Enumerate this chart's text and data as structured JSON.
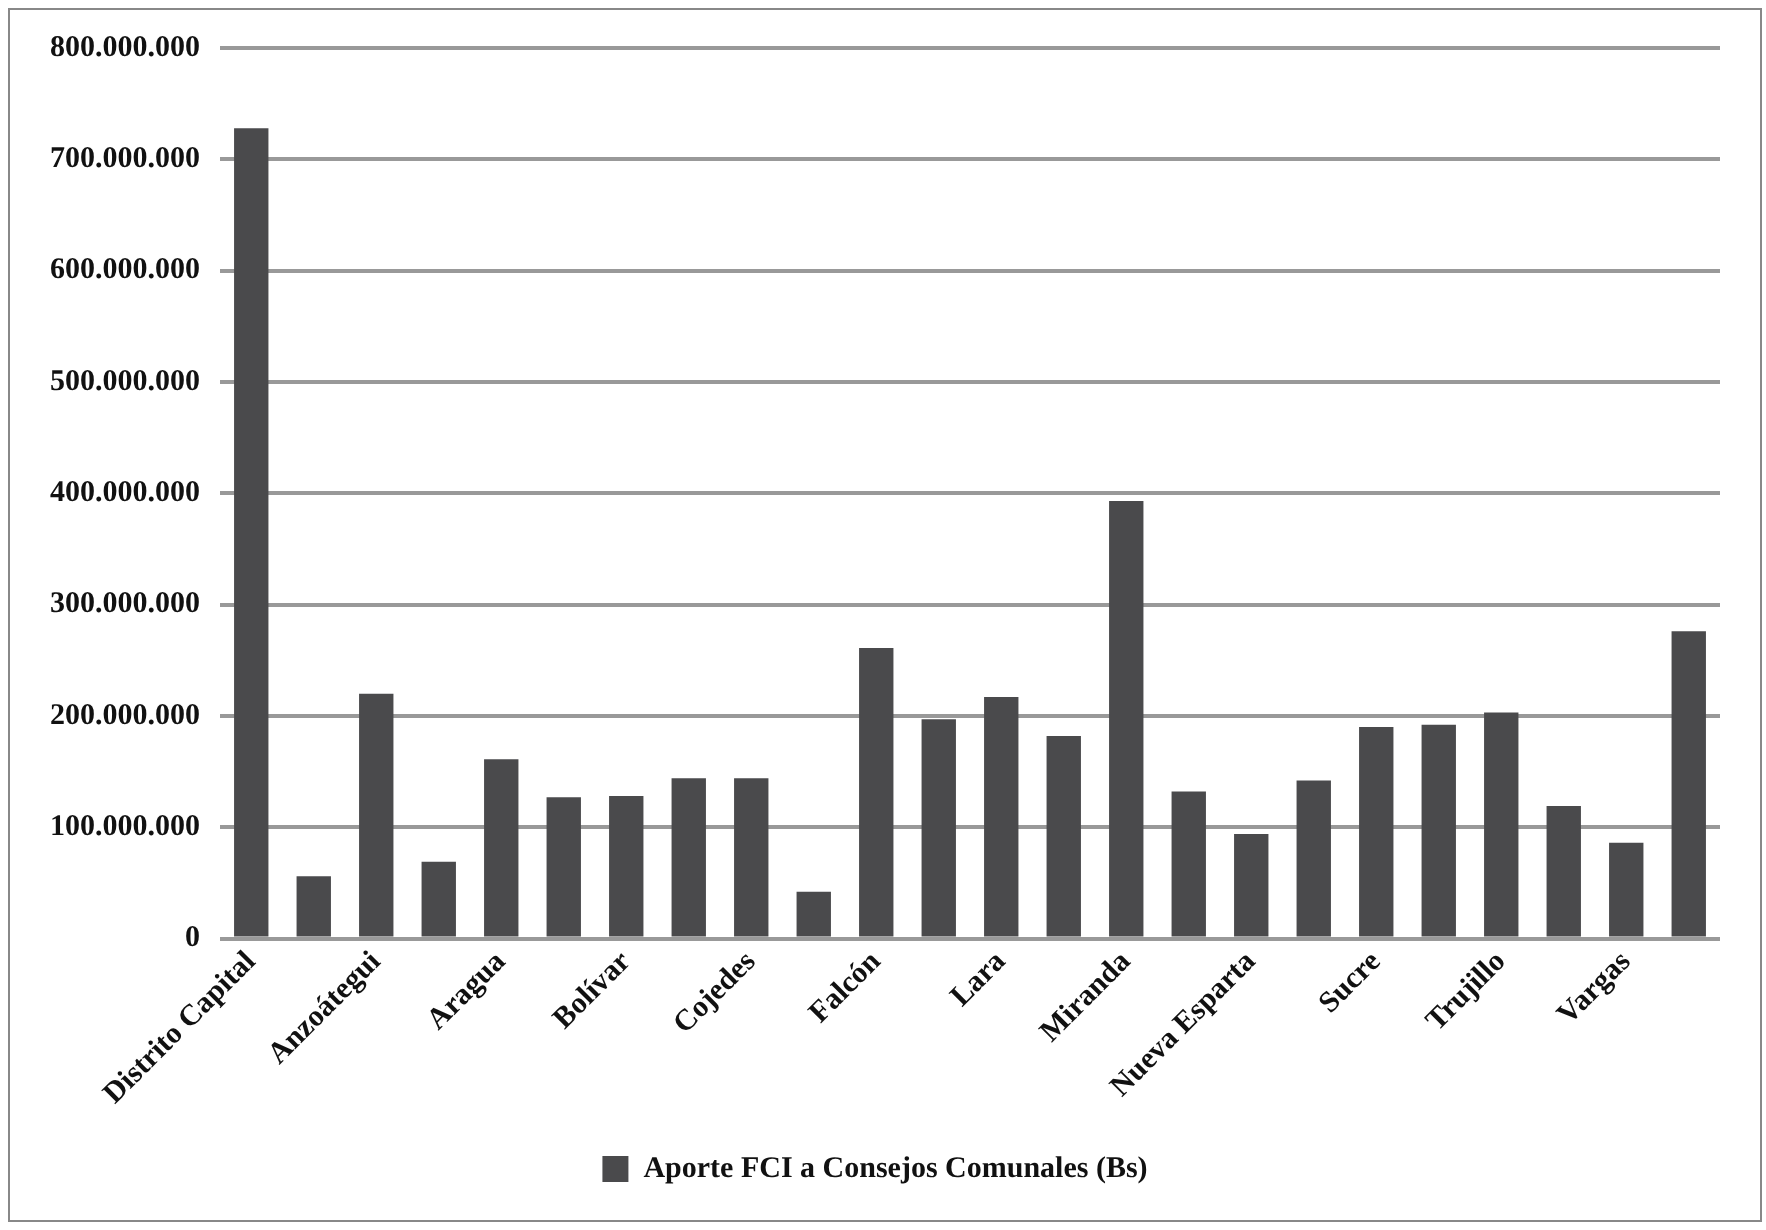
{
  "chart_data": {
    "type": "bar",
    "categories": [
      "Distrito Capital",
      null,
      "Anzoátegui",
      null,
      "Aragua",
      null,
      "Bolívar",
      null,
      "Cojedes",
      null,
      "Falcón",
      null,
      "Lara",
      null,
      "Miranda",
      null,
      "Nueva Esparta",
      null,
      "Sucre",
      null,
      "Trujillo",
      null,
      "Vargas",
      null
    ],
    "series": [
      {
        "name": "Aporte FCI a Consejos Comunales (Bs)",
        "color": "#4a4a4c",
        "values": [
          728000000,
          56000000,
          220000000,
          69000000,
          161000000,
          127000000,
          128000000,
          144000000,
          144000000,
          42000000,
          261000000,
          197000000,
          217000000,
          182000000,
          393000000,
          132000000,
          94000000,
          142000000,
          190000000,
          192000000,
          203000000,
          119000000,
          86000000,
          276000000
        ]
      }
    ],
    "ylim": [
      0,
      800000000
    ],
    "yticks": [
      {
        "value": 0,
        "label": "0"
      },
      {
        "value": 100000000,
        "label": "100.000.000"
      },
      {
        "value": 200000000,
        "label": "200.000.000"
      },
      {
        "value": 300000000,
        "label": "300.000.000"
      },
      {
        "value": 400000000,
        "label": "400.000.000"
      },
      {
        "value": 500000000,
        "label": "500.000.000"
      },
      {
        "value": 600000000,
        "label": "600.000.000"
      },
      {
        "value": 700000000,
        "label": "700.000.000"
      },
      {
        "value": 800000000,
        "label": "800.000.000"
      }
    ],
    "grid": "y",
    "legend": "bottom"
  }
}
